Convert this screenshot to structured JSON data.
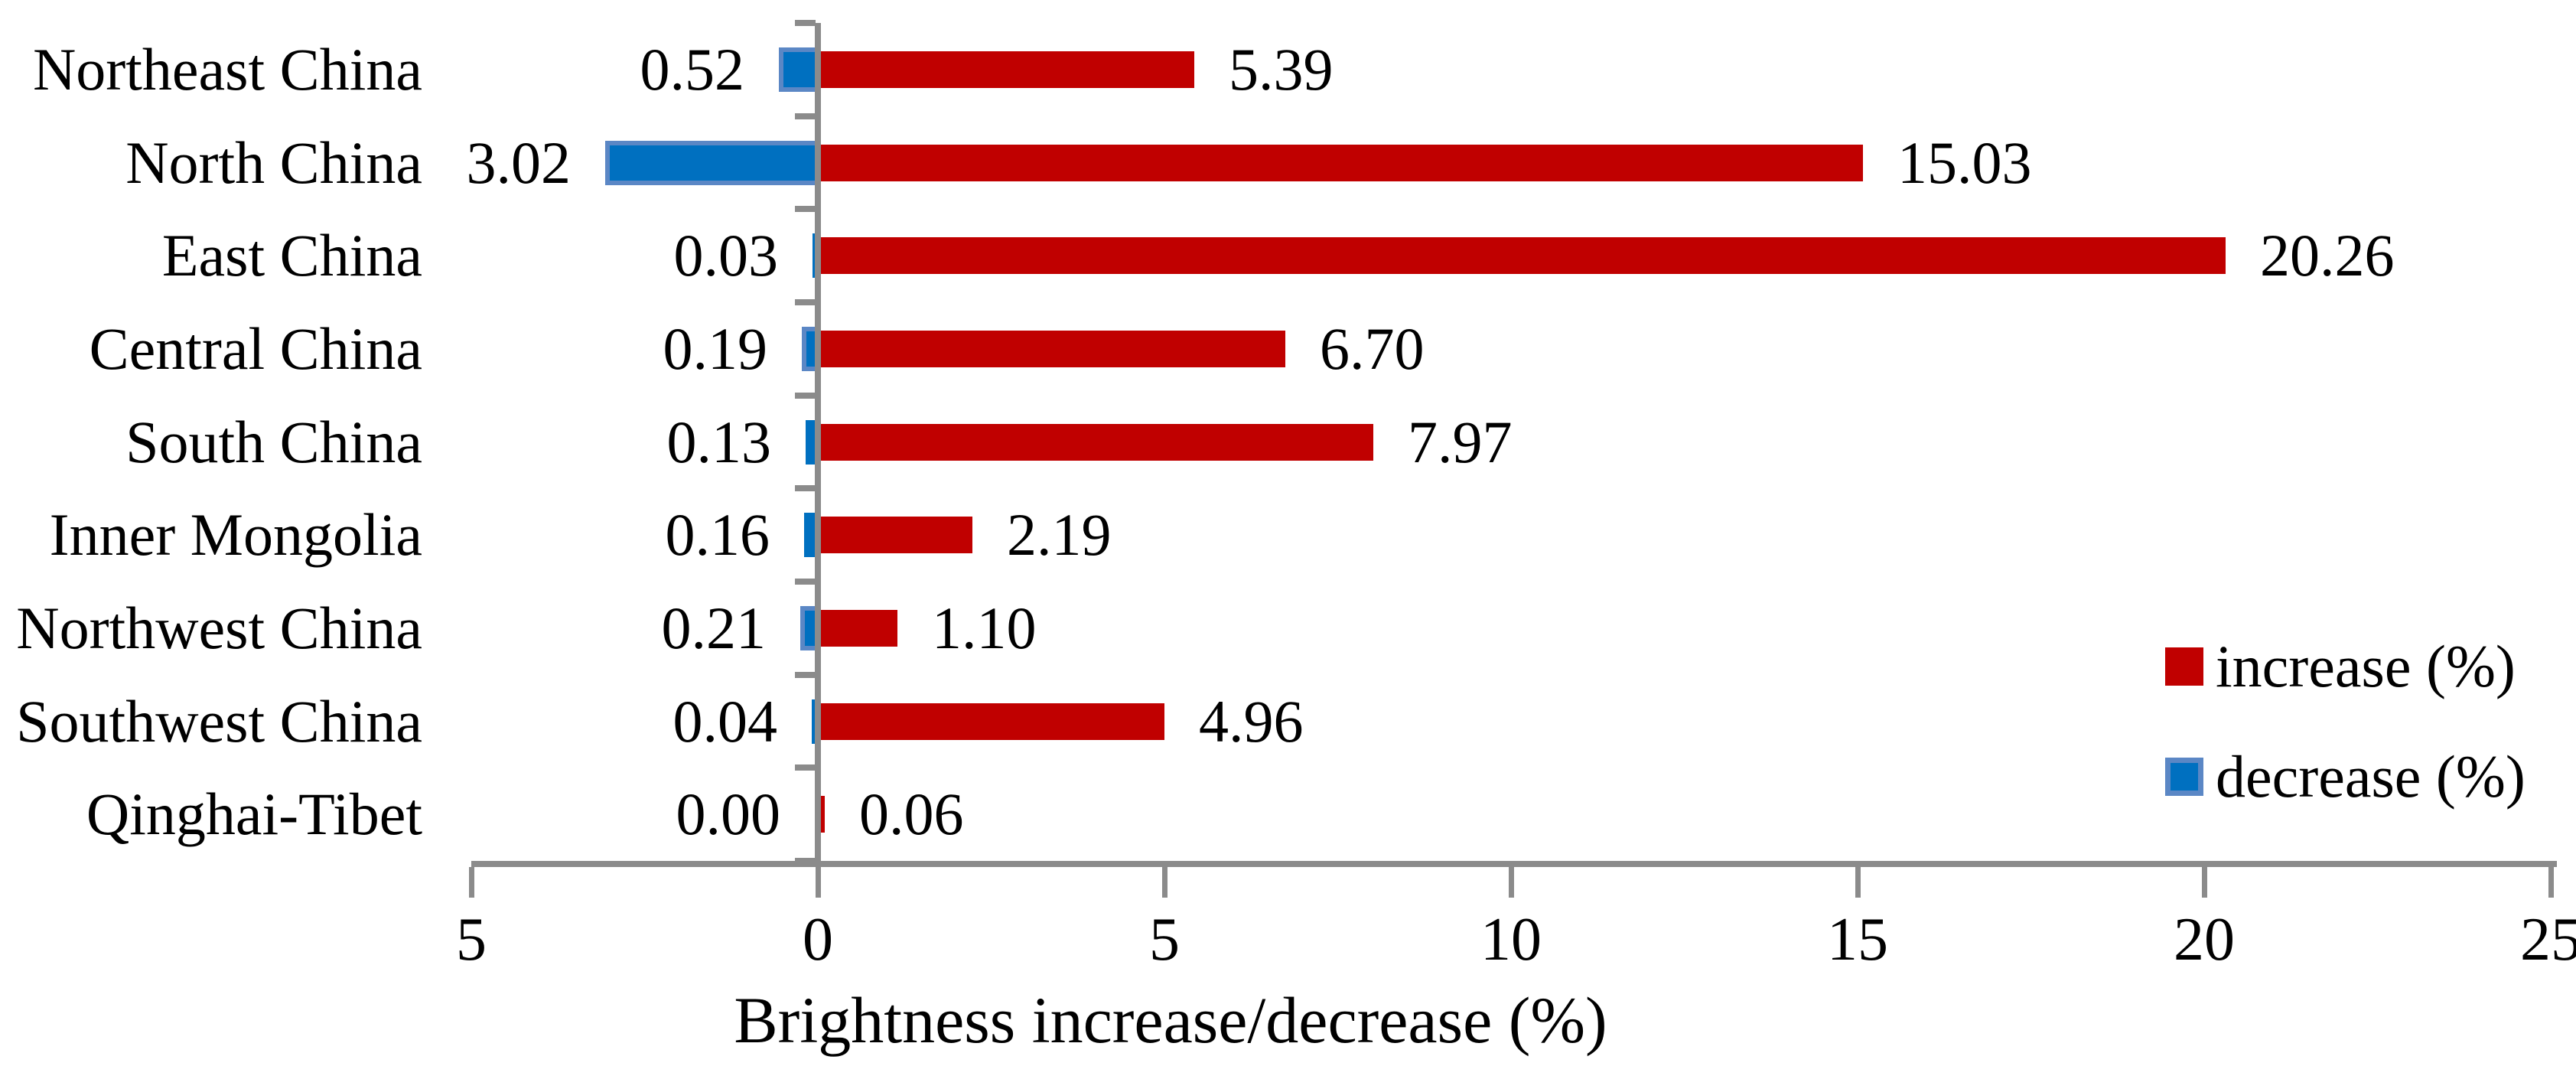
{
  "chart_data": {
    "type": "bar",
    "orientation": "horizontal",
    "xlabel": "Brightness increase/decrease (%)",
    "categories": [
      "Northeast China",
      "North China",
      "East China",
      "Central China",
      "South China",
      "Inner Mongolia",
      "Northwest China",
      "Southwest China",
      "Qinghai-Tibet"
    ],
    "series": [
      {
        "name": "increase (%)",
        "direction": "right",
        "color": "#c00000",
        "values": [
          5.39,
          15.03,
          20.26,
          6.7,
          7.97,
          2.19,
          1.1,
          4.96,
          0.06
        ],
        "value_labels": [
          "5.39",
          "15.03",
          "20.26",
          "6.70",
          "7.97",
          "2.19",
          "1.10",
          "4.96",
          "0.06"
        ]
      },
      {
        "name": "decrease (%)",
        "direction": "left",
        "color": "#0070c0",
        "border_color": "#5b87c5",
        "values": [
          0.52,
          3.02,
          0.03,
          0.19,
          0.13,
          0.16,
          0.21,
          0.04,
          0.0
        ],
        "value_labels": [
          "0.52",
          "3.02",
          "0.03",
          "0.19",
          "0.13",
          "0.16",
          "0.21",
          "0.04",
          "0.00"
        ]
      }
    ],
    "xlim": [
      -5,
      25
    ],
    "x_ticks": [
      -5,
      0,
      5,
      10,
      15,
      20,
      25
    ],
    "x_tick_labels": [
      "5",
      "0",
      "5",
      "10",
      "15",
      "20",
      "25"
    ],
    "grid": false,
    "legend_position": "right",
    "data_labels": "outside-end",
    "axis_color": "#8b8b8b",
    "text_color": "#000000",
    "background": "#ffffff"
  }
}
